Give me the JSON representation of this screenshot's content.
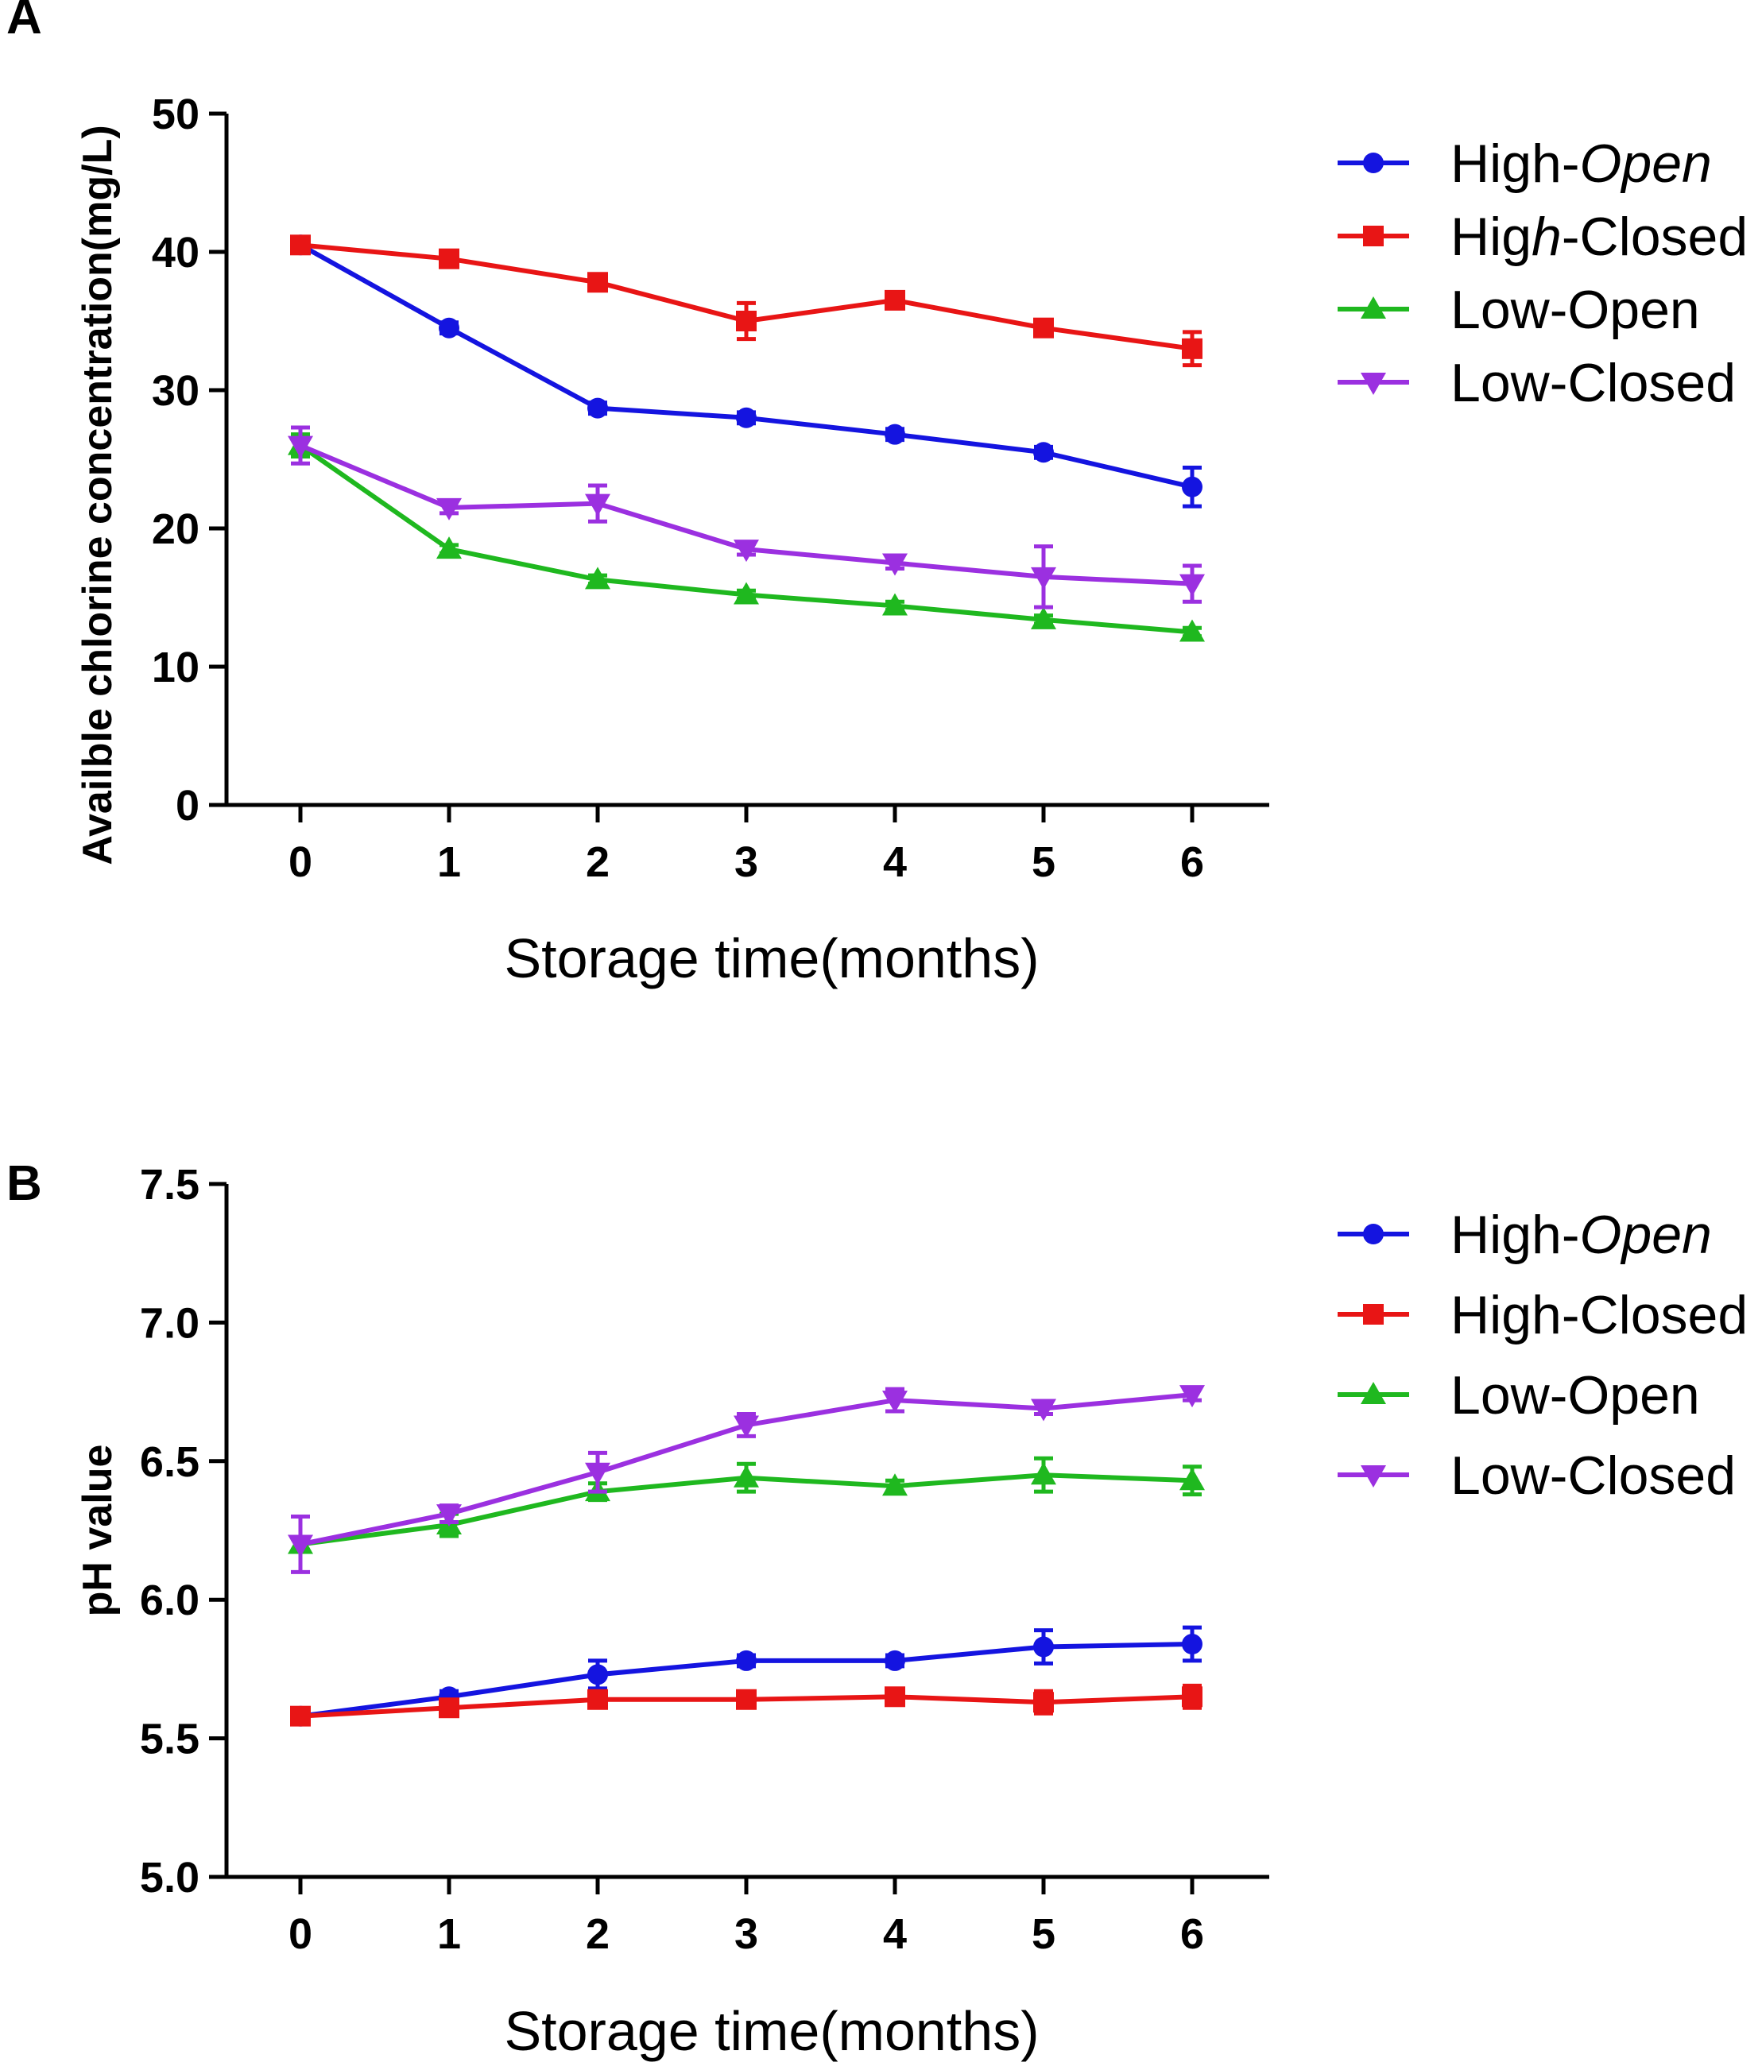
{
  "chart_data": [
    {
      "type": "line",
      "panel": "A",
      "title": "",
      "xlabel": "Storage time(months)",
      "ylabel": "Availble chlorine concentration(mg/L)",
      "x": [
        0,
        1,
        2,
        3,
        4,
        5,
        6
      ],
      "x_tick_labels": [
        "0",
        "1",
        "2",
        "3",
        "4",
        "5",
        "6"
      ],
      "ylim": [
        0,
        50
      ],
      "y_ticks": [
        0,
        10,
        20,
        30,
        40,
        50
      ],
      "y_tick_labels": [
        "0",
        "10",
        "20",
        "30",
        "40",
        "50"
      ],
      "grid": false,
      "legend_position": "right",
      "series": [
        {
          "name": "High-Open",
          "name_parts": [
            {
              "text": "High-",
              "italic": false
            },
            {
              "text": "Open",
              "italic": true
            }
          ],
          "color": "#1414e0",
          "marker": "circle",
          "values": [
            40.5,
            34.5,
            28.7,
            28.0,
            26.8,
            25.5,
            23.0
          ],
          "errors": [
            0.5,
            0.4,
            0.4,
            0.4,
            0.4,
            0.4,
            1.4
          ]
        },
        {
          "name": "High-Closed",
          "name_parts": [
            {
              "text": "Hig",
              "italic": false
            },
            {
              "text": "h",
              "italic": true
            },
            {
              "text": "-Closed",
              "italic": false
            }
          ],
          "color": "#e81515",
          "marker": "square",
          "values": [
            40.5,
            39.5,
            37.8,
            35.0,
            36.5,
            34.5,
            33.0
          ],
          "errors": [
            0.4,
            0.4,
            0.5,
            1.3,
            0.4,
            0.4,
            1.2
          ]
        },
        {
          "name": "Low-Open",
          "name_parts": [
            {
              "text": "Low-Open",
              "italic": false
            }
          ],
          "color": "#1fb81f",
          "marker": "triangle-up",
          "values": [
            26.0,
            18.5,
            16.3,
            15.2,
            14.4,
            13.4,
            12.5
          ],
          "errors": [
            0.8,
            0.3,
            0.3,
            0.3,
            0.3,
            0.3,
            0.3
          ]
        },
        {
          "name": "Low-Closed",
          "name_parts": [
            {
              "text": "Low-Closed",
              "italic": false
            }
          ],
          "color": "#9b30e0",
          "marker": "triangle-down",
          "values": [
            26.0,
            21.5,
            21.8,
            18.5,
            17.5,
            16.5,
            16.0
          ],
          "errors": [
            1.3,
            0.4,
            1.3,
            0.4,
            0.4,
            2.2,
            1.3
          ]
        }
      ]
    },
    {
      "type": "line",
      "panel": "B",
      "title": "",
      "xlabel": "Storage time(months)",
      "ylabel": "pH value",
      "x": [
        0,
        1,
        2,
        3,
        4,
        5,
        6
      ],
      "x_tick_labels": [
        "0",
        "1",
        "2",
        "3",
        "4",
        "5",
        "6"
      ],
      "ylim": [
        5.0,
        7.5
      ],
      "y_ticks": [
        5.0,
        5.5,
        6.0,
        6.5,
        7.0,
        7.5
      ],
      "y_tick_labels": [
        "5.0",
        "5.5",
        "6.0",
        "6.5",
        "7.0",
        "7.5"
      ],
      "grid": false,
      "legend_position": "right",
      "series": [
        {
          "name": "High-Open",
          "name_parts": [
            {
              "text": "High-",
              "italic": false
            },
            {
              "text": "Open",
              "italic": true
            }
          ],
          "color": "#1414e0",
          "marker": "circle",
          "values": [
            5.58,
            5.65,
            5.73,
            5.78,
            5.78,
            5.83,
            5.84
          ],
          "errors": [
            0.02,
            0.02,
            0.05,
            0.02,
            0.02,
            0.06,
            0.06
          ]
        },
        {
          "name": "High-Closed",
          "name_parts": [
            {
              "text": "High-Closed",
              "italic": false
            }
          ],
          "color": "#e81515",
          "marker": "square",
          "values": [
            5.58,
            5.61,
            5.64,
            5.64,
            5.65,
            5.63,
            5.65
          ],
          "errors": [
            0.02,
            0.02,
            0.02,
            0.02,
            0.02,
            0.04,
            0.04
          ]
        },
        {
          "name": "Low-Open",
          "name_parts": [
            {
              "text": "Low-Open",
              "italic": false
            }
          ],
          "color": "#1fb81f",
          "marker": "triangle-up",
          "values": [
            6.2,
            6.27,
            6.39,
            6.44,
            6.41,
            6.45,
            6.43
          ],
          "errors": [
            0.02,
            0.04,
            0.03,
            0.05,
            0.02,
            0.06,
            0.05
          ]
        },
        {
          "name": "Low-Closed",
          "name_parts": [
            {
              "text": "Low-Closed",
              "italic": false
            }
          ],
          "color": "#9b30e0",
          "marker": "triangle-down",
          "values": [
            6.2,
            6.31,
            6.46,
            6.63,
            6.72,
            6.69,
            6.74
          ],
          "errors": [
            0.1,
            0.03,
            0.07,
            0.04,
            0.04,
            0.02,
            0.02
          ]
        }
      ]
    }
  ]
}
